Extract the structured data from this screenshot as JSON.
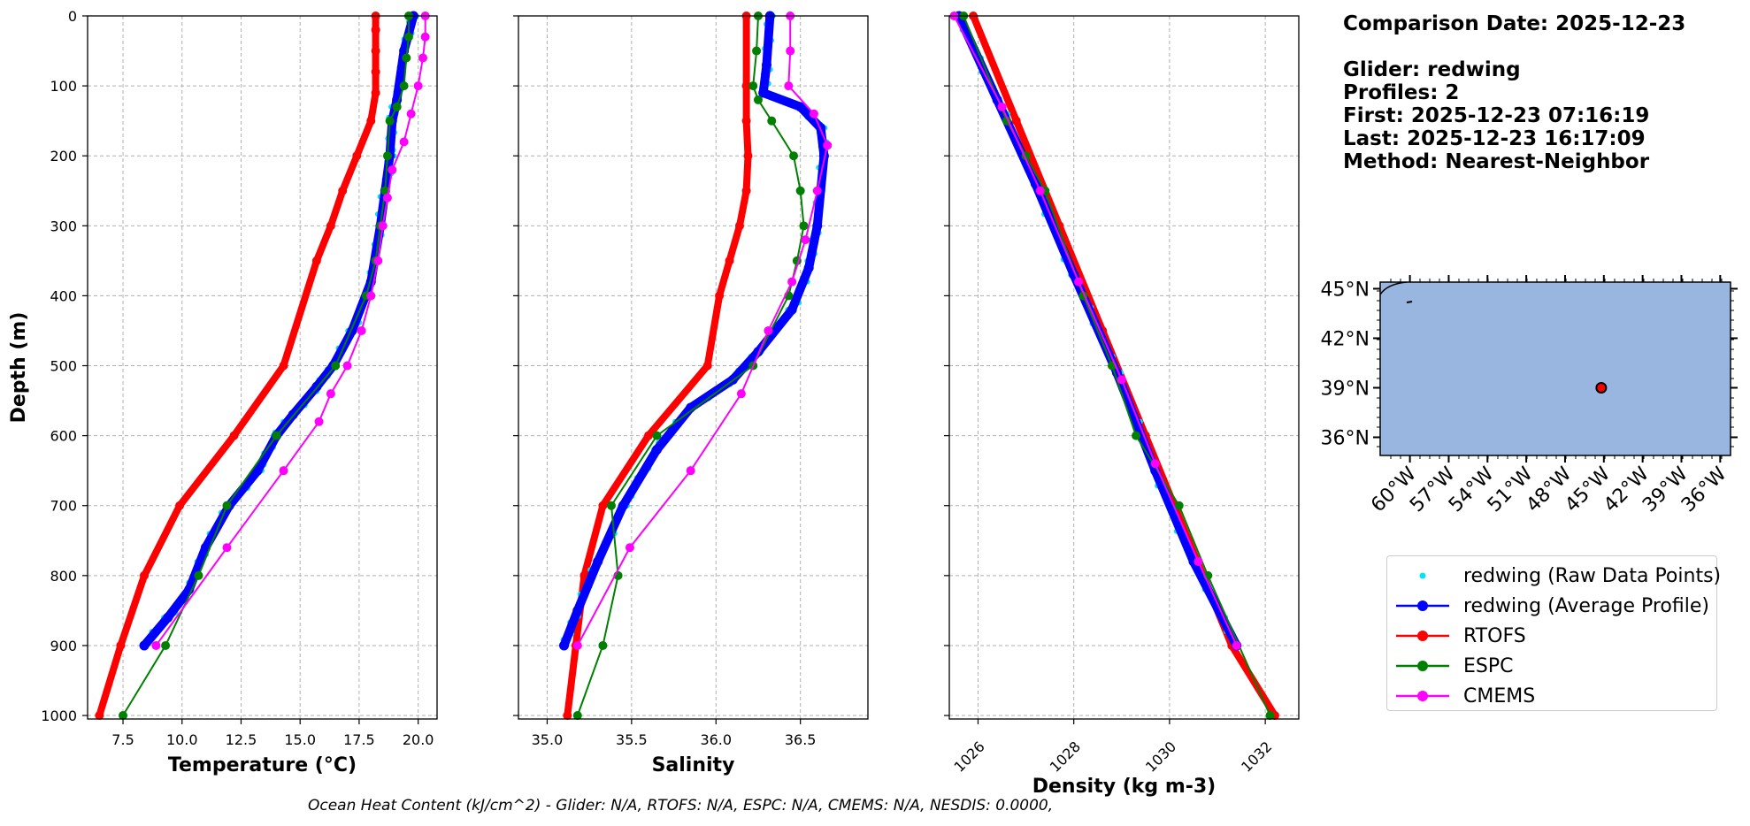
{
  "info": {
    "comparison_date": "Comparison Date: 2025-12-23",
    "glider": "Glider: redwing",
    "profiles": "Profiles: 2",
    "first": "First: 2025-12-23 07:16:19",
    "last": "Last: 2025-12-23 16:17:09",
    "method": "Method: Nearest-Neighbor"
  },
  "footer": "Ocean Heat Content (kJ/cm^2) - Glider: N/A,  RTOFS: N/A,  ESPC: N/A,  CMEMS: N/A,  NESDIS: 0.0000,",
  "colors": {
    "raw": "#00e5ee",
    "avg": "#0000ff",
    "rtofs": "#ff0000",
    "espc": "#008000",
    "cmems": "#ff00ff",
    "ocean": "#98b6e0",
    "grid": "#b0b0b0"
  },
  "legend": [
    {
      "key": "raw",
      "label": "redwing (Raw Data Points)",
      "style": "dot"
    },
    {
      "key": "avg",
      "label": "redwing (Average Profile)",
      "style": "line-marker"
    },
    {
      "key": "rtofs",
      "label": "RTOFS",
      "style": "line-marker"
    },
    {
      "key": "espc",
      "label": "ESPC",
      "style": "line-marker"
    },
    {
      "key": "cmems",
      "label": "CMEMS",
      "style": "line-marker"
    }
  ],
  "chart_data": [
    {
      "type": "line",
      "xlabel": "Temperature (°C)",
      "ylabel": "Depth (m)",
      "xlim": [
        6.0,
        20.8
      ],
      "ylim": [
        1005,
        0
      ],
      "xticks": [
        "7.5",
        "10.0",
        "12.5",
        "15.0",
        "17.5",
        "20.0"
      ],
      "yticks": [
        "0",
        "100",
        "200",
        "300",
        "400",
        "500",
        "600",
        "700",
        "800",
        "900",
        "1000"
      ],
      "grid": true,
      "series": [
        {
          "name": "RTOFS",
          "key": "rtofs",
          "x": [
            18.2,
            18.2,
            18.2,
            18.2,
            18.2,
            18.0,
            17.4,
            16.8,
            16.3,
            15.7,
            14.3,
            12.2,
            9.9,
            8.4,
            7.4,
            6.5
          ],
          "y": [
            0,
            20,
            50,
            80,
            110,
            150,
            200,
            250,
            300,
            350,
            500,
            600,
            700,
            800,
            900,
            1000
          ]
        },
        {
          "name": "redwing (Average Profile)",
          "key": "avg",
          "x": [
            19.8,
            19.4,
            19.1,
            18.9,
            18.8,
            18.6,
            18.4,
            18.0,
            17.2,
            16.4,
            15.7,
            14.7,
            14.0,
            13.2,
            12.0,
            11.0,
            10.3,
            9.4,
            8.4
          ],
          "y": [
            0,
            50,
            120,
            150,
            200,
            250,
            300,
            380,
            450,
            500,
            530,
            570,
            600,
            650,
            700,
            760,
            820,
            860,
            900
          ]
        },
        {
          "name": "ESPC",
          "key": "espc",
          "x": [
            19.6,
            19.6,
            19.5,
            19.4,
            19.1,
            18.8,
            18.7,
            18.6,
            18.4,
            18.2,
            17.8,
            16.5,
            14.0,
            11.9,
            10.7,
            9.3,
            7.5
          ],
          "y": [
            0,
            30,
            60,
            100,
            130,
            150,
            200,
            250,
            300,
            350,
            400,
            500,
            600,
            700,
            800,
            900,
            1000
          ]
        },
        {
          "name": "CMEMS",
          "key": "cmems",
          "x": [
            20.3,
            20.3,
            20.2,
            20.0,
            19.7,
            19.4,
            18.9,
            18.7,
            18.5,
            18.3,
            18.0,
            17.6,
            17.0,
            16.3,
            15.8,
            14.3,
            11.9,
            8.9
          ],
          "y": [
            0,
            30,
            60,
            100,
            140,
            180,
            220,
            260,
            300,
            350,
            400,
            450,
            500,
            540,
            580,
            650,
            760,
            900
          ]
        }
      ]
    },
    {
      "type": "line",
      "xlabel": "Salinity",
      "ylabel": "",
      "xlim": [
        34.83,
        36.9
      ],
      "ylim": [
        1005,
        0
      ],
      "xticks": [
        "35.0",
        "35.5",
        "36.0",
        "36.5"
      ],
      "grid": true,
      "series": [
        {
          "name": "RTOFS",
          "key": "rtofs",
          "x": [
            36.18,
            36.18,
            36.18,
            36.19,
            36.18,
            36.14,
            36.08,
            36.02,
            35.95,
            35.6,
            35.33,
            35.22,
            35.17,
            35.12
          ],
          "y": [
            0,
            100,
            150,
            200,
            250,
            300,
            350,
            400,
            500,
            600,
            700,
            800,
            900,
            1000
          ]
        },
        {
          "name": "redwing (Average Profile)",
          "key": "avg",
          "x": [
            36.32,
            36.3,
            36.28,
            36.5,
            36.62,
            36.64,
            36.6,
            36.55,
            36.45,
            36.25,
            36.1,
            35.85,
            35.65,
            35.45,
            35.3,
            35.18,
            35.1
          ],
          "y": [
            0,
            70,
            110,
            130,
            160,
            200,
            300,
            360,
            420,
            480,
            520,
            560,
            620,
            700,
            780,
            850,
            900
          ]
        },
        {
          "name": "ESPC",
          "key": "espc",
          "x": [
            36.25,
            36.24,
            36.22,
            36.25,
            36.33,
            36.46,
            36.5,
            36.52,
            36.48,
            36.43,
            36.22,
            35.65,
            35.38,
            35.42,
            35.33,
            35.18
          ],
          "y": [
            0,
            50,
            100,
            120,
            150,
            200,
            250,
            300,
            350,
            400,
            500,
            600,
            700,
            800,
            900,
            1000
          ]
        },
        {
          "name": "CMEMS",
          "key": "cmems",
          "x": [
            36.44,
            36.44,
            36.43,
            36.58,
            36.66,
            36.6,
            36.53,
            36.45,
            36.31,
            36.15,
            35.85,
            35.49,
            35.18
          ],
          "y": [
            0,
            50,
            100,
            140,
            185,
            250,
            320,
            380,
            450,
            540,
            650,
            760,
            900
          ]
        }
      ]
    },
    {
      "type": "line",
      "xlabel": "Density (kg m-3)",
      "ylabel": "",
      "xlim": [
        1025.4,
        1032.7
      ],
      "ylim": [
        1005,
        0
      ],
      "xticks": [
        "1026",
        "1028",
        "1030",
        "1032"
      ],
      "grid": true,
      "series": [
        {
          "name": "RTOFS",
          "key": "rtofs",
          "x": [
            1025.9,
            1026.8,
            1027.7,
            1028.6,
            1029.5,
            1030.4,
            1031.3,
            1032.2
          ],
          "y": [
            0,
            150,
            300,
            450,
            600,
            750,
            900,
            1000
          ]
        },
        {
          "name": "redwing (Average Profile)",
          "key": "avg",
          "x": [
            1025.6,
            1026.4,
            1027.2,
            1028.0,
            1028.9,
            1029.7,
            1030.5,
            1031.4
          ],
          "y": [
            0,
            120,
            240,
            370,
            510,
            650,
            780,
            900
          ]
        },
        {
          "name": "ESPC",
          "key": "espc",
          "x": [
            1025.7,
            1026.6,
            1027.0,
            1027.4,
            1028.2,
            1028.8,
            1029.3,
            1030.2,
            1030.8,
            1032.1
          ],
          "y": [
            0,
            150,
            200,
            250,
            400,
            500,
            600,
            700,
            800,
            1000
          ]
        },
        {
          "name": "CMEMS",
          "key": "cmems",
          "x": [
            1025.5,
            1026.5,
            1027.3,
            1028.1,
            1029.0,
            1029.7,
            1030.6,
            1031.4
          ],
          "y": [
            0,
            130,
            250,
            380,
            520,
            640,
            780,
            900
          ]
        }
      ]
    }
  ],
  "map": {
    "lat_labels": [
      "45°N",
      "42°N",
      "39°N",
      "36°N"
    ],
    "lat_values": [
      45,
      42,
      39,
      36
    ],
    "lon_labels": [
      "60°W",
      "57°W",
      "54°W",
      "51°W",
      "48°W",
      "45°W",
      "42°W",
      "39°W",
      "36°W"
    ],
    "lon_values": [
      -60,
      -57,
      -54,
      -51,
      -48,
      -45,
      -42,
      -39,
      -36
    ],
    "lon_range": [
      -62.3,
      -35.2
    ],
    "lat_range": [
      34.9,
      45.4
    ],
    "glider_position": [
      -45.2,
      39.0
    ]
  }
}
